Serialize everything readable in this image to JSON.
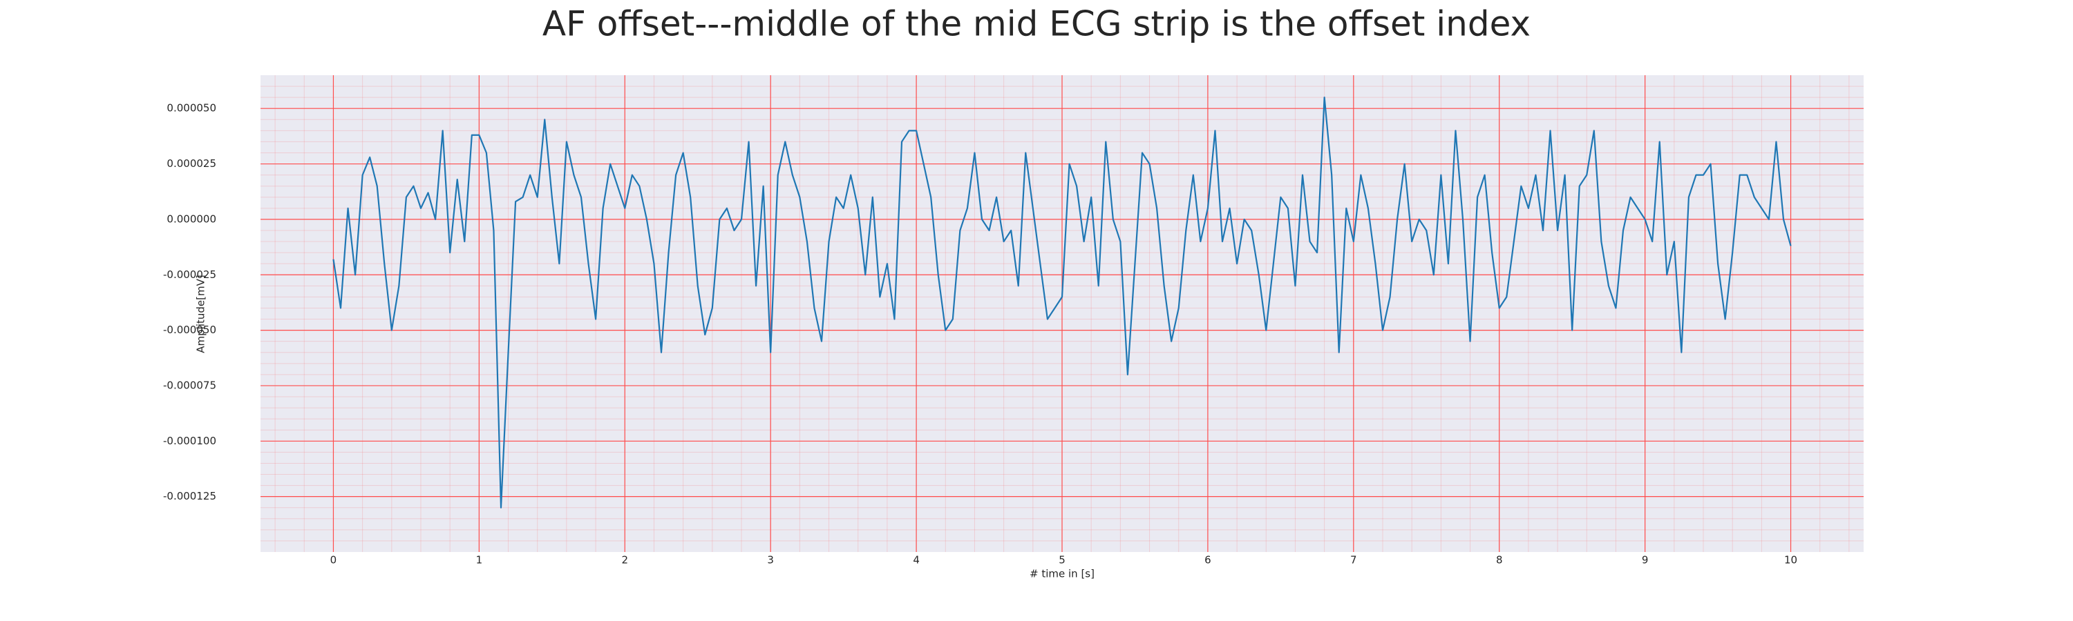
{
  "chart_data": {
    "type": "line",
    "title": "AF offset---middle of the mid ECG strip is the offset index",
    "xlabel": "# time in [s]",
    "ylabel": "Amplitude[mV]",
    "color": "#1f77b4",
    "grid": true,
    "grid_color": "#ff4d4d",
    "minor_grid": true,
    "background": "#eaeaf2",
    "xlim": [
      -0.5,
      10.5
    ],
    "ylim": [
      -0.00015,
      6.5e-05
    ],
    "xticks": [
      0,
      1,
      2,
      3,
      4,
      5,
      6,
      7,
      8,
      9,
      10
    ],
    "yticks": [
      {
        "value": 5e-05,
        "label": "0.000050"
      },
      {
        "value": 2.5e-05,
        "label": "0.000025"
      },
      {
        "value": 0,
        "label": "0.000000"
      },
      {
        "value": -2.5e-05,
        "label": "-0.000025"
      },
      {
        "value": -5e-05,
        "label": "-0.000050"
      },
      {
        "value": -7.5e-05,
        "label": "-0.000075"
      },
      {
        "value": -0.0001,
        "label": "-0.000100"
      },
      {
        "value": -0.000125,
        "label": "-0.000125"
      }
    ],
    "x": [
      0,
      0.05,
      0.1,
      0.15,
      0.2,
      0.25,
      0.3,
      0.35,
      0.4,
      0.45,
      0.5,
      0.55,
      0.6,
      0.65,
      0.7,
      0.75,
      0.8,
      0.85,
      0.9,
      0.95,
      1,
      1.05,
      1.1,
      1.15,
      1.2,
      1.25,
      1.3,
      1.35,
      1.4,
      1.45,
      1.5,
      1.55,
      1.6,
      1.65,
      1.7,
      1.75,
      1.8,
      1.85,
      1.9,
      1.95,
      2,
      2.05,
      2.1,
      2.15,
      2.2,
      2.25,
      2.3,
      2.35,
      2.4,
      2.45,
      2.5,
      2.55,
      2.6,
      2.65,
      2.7,
      2.75,
      2.8,
      2.85,
      2.9,
      2.95,
      3,
      3.05,
      3.1,
      3.15,
      3.2,
      3.25,
      3.3,
      3.35,
      3.4,
      3.45,
      3.5,
      3.55,
      3.6,
      3.65,
      3.7,
      3.75,
      3.8,
      3.85,
      3.9,
      3.95,
      4,
      4.05,
      4.1,
      4.15,
      4.2,
      4.25,
      4.3,
      4.35,
      4.4,
      4.45,
      4.5,
      4.55,
      4.6,
      4.65,
      4.7,
      4.75,
      4.8,
      4.85,
      4.9,
      4.95,
      5,
      5.05,
      5.1,
      5.15,
      5.2,
      5.25,
      5.3,
      5.35,
      5.4,
      5.45,
      5.5,
      5.55,
      5.6,
      5.65,
      5.7,
      5.75,
      5.8,
      5.85,
      5.9,
      5.95,
      6,
      6.05,
      6.1,
      6.15,
      6.2,
      6.25,
      6.3,
      6.35,
      6.4,
      6.45,
      6.5,
      6.55,
      6.6,
      6.65,
      6.7,
      6.75,
      6.8,
      6.85,
      6.9,
      6.95,
      7,
      7.05,
      7.1,
      7.15,
      7.2,
      7.25,
      7.3,
      7.35,
      7.4,
      7.45,
      7.5,
      7.55,
      7.6,
      7.65,
      7.7,
      7.75,
      7.8,
      7.85,
      7.9,
      7.95,
      8,
      8.05,
      8.1,
      8.15,
      8.2,
      8.25,
      8.3,
      8.35,
      8.4,
      8.45,
      8.5,
      8.55,
      8.6,
      8.65,
      8.7,
      8.75,
      8.8,
      8.85,
      8.9,
      8.95,
      9,
      9.05,
      9.1,
      9.15,
      9.2,
      9.25,
      9.3,
      9.35,
      9.4,
      9.45,
      9.5,
      9.55,
      9.6,
      9.65,
      9.7,
      9.75,
      9.8,
      9.85,
      9.9,
      9.95,
      10
    ],
    "values": [
      -1.8e-05,
      -4e-05,
      5e-06,
      -2.5e-05,
      2e-05,
      2.8e-05,
      1.5e-05,
      -2e-05,
      -5e-05,
      -3e-05,
      1e-05,
      1.5e-05,
      5e-06,
      1.2e-05,
      0,
      4e-05,
      -1.5e-05,
      1.8e-05,
      -1e-05,
      3.8e-05,
      3.8e-05,
      3e-05,
      -5e-06,
      -0.00013,
      -6e-05,
      8e-06,
      1e-05,
      2e-05,
      1e-05,
      4.5e-05,
      1e-05,
      -2e-05,
      3.5e-05,
      2e-05,
      1e-05,
      -2e-05,
      -4.5e-05,
      5e-06,
      2.5e-05,
      1.5e-05,
      5e-06,
      2e-05,
      1.5e-05,
      0,
      -2e-05,
      -6e-05,
      -1.5e-05,
      2e-05,
      3e-05,
      1e-05,
      -3e-05,
      -5.2e-05,
      -4e-05,
      0,
      5e-06,
      -5e-06,
      0,
      3.5e-05,
      -3e-05,
      1.5e-05,
      -6e-05,
      2e-05,
      3.5e-05,
      2e-05,
      1e-05,
      -1e-05,
      -4e-05,
      -5.5e-05,
      -1e-05,
      1e-05,
      5e-06,
      2e-05,
      5e-06,
      -2.5e-05,
      1e-05,
      -3.5e-05,
      -2e-05,
      -4.5e-05,
      3.5e-05,
      4e-05,
      4e-05,
      2.5e-05,
      1e-05,
      -2.5e-05,
      -5e-05,
      -4.5e-05,
      -5e-06,
      5e-06,
      3e-05,
      0,
      -5e-06,
      1e-05,
      -1e-05,
      -5e-06,
      -3e-05,
      3e-05,
      5e-06,
      -2e-05,
      -4.5e-05,
      -4e-05,
      -3.5e-05,
      2.5e-05,
      1.5e-05,
      -1e-05,
      1e-05,
      -3e-05,
      3.5e-05,
      0,
      -1e-05,
      -7e-05,
      -2e-05,
      3e-05,
      2.5e-05,
      5e-06,
      -3e-05,
      -5.5e-05,
      -4e-05,
      -5e-06,
      2e-05,
      -1e-05,
      5e-06,
      4e-05,
      -1e-05,
      5e-06,
      -2e-05,
      0,
      -5e-06,
      -2.5e-05,
      -5e-05,
      -2e-05,
      1e-05,
      5e-06,
      -3e-05,
      2e-05,
      -1e-05,
      -1.5e-05,
      5.5e-05,
      2e-05,
      -6e-05,
      5e-06,
      -1e-05,
      2e-05,
      5e-06,
      -2e-05,
      -5e-05,
      -3.5e-05,
      0,
      2.5e-05,
      -1e-05,
      0,
      -5e-06,
      -2.5e-05,
      2e-05,
      -2e-05,
      4e-05,
      0,
      -5.5e-05,
      1e-05,
      2e-05,
      -1.5e-05,
      -4e-05,
      -3.5e-05,
      -1e-05,
      1.5e-05,
      5e-06,
      2e-05,
      -5e-06,
      4e-05,
      -5e-06,
      2e-05,
      -5e-05,
      1.5e-05,
      2e-05,
      4e-05,
      -1e-05,
      -3e-05,
      -4e-05,
      -5e-06,
      1e-05,
      5e-06,
      0,
      -1e-05,
      3.5e-05,
      -2.5e-05,
      -1e-05,
      -6e-05,
      1e-05,
      2e-05,
      2e-05,
      2.5e-05,
      -2e-05,
      -4.5e-05,
      -1.5e-05,
      2e-05,
      2e-05,
      1e-05,
      5e-06,
      0,
      3.5e-05,
      0,
      -1.2e-05
    ]
  }
}
